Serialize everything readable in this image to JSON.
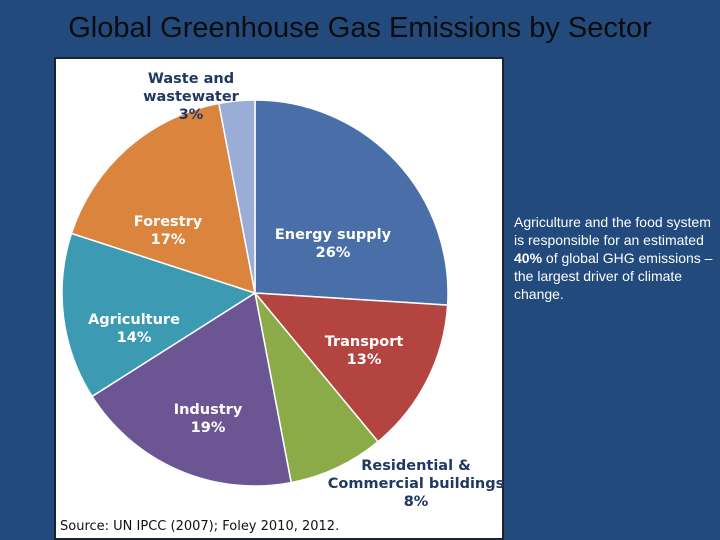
{
  "title": "Global Greenhouse Gas Emissions by Sector",
  "annotation": [
    "Agriculture and the food system is responsible for an estimated ",
    "40%",
    " of global GHG emissions – the largest driver of climate change."
  ],
  "chart_data": {
    "type": "pie",
    "categories": [
      "Energy supply",
      "Transport",
      "Residential & Commercial buildings",
      "Industry",
      "Agriculture",
      "Forestry",
      "Waste and wastewater"
    ],
    "values": [
      26,
      13,
      8,
      19,
      14,
      17,
      3
    ],
    "value_labels": [
      "26%",
      "13%",
      "8%",
      "19%",
      "14%",
      "17%",
      "3%"
    ],
    "colors": [
      "#4a6fa8",
      "#b3443f",
      "#8bab48",
      "#6b5592",
      "#3c9bb2",
      "#db843d",
      "#9aadd7"
    ],
    "source": "Source: UN IPCC (2007); Foley 2010, 2012."
  }
}
